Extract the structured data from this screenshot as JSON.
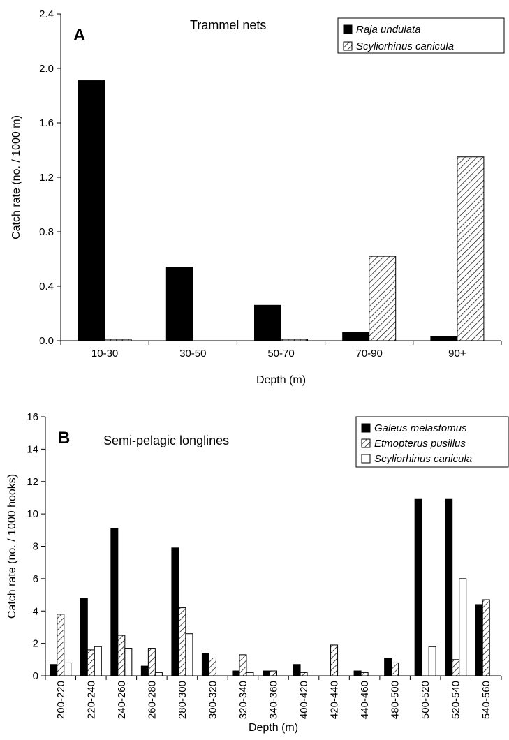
{
  "chart_data": [
    {
      "type": "bar",
      "panel": "A",
      "title": "Trammel nets",
      "xlabel": "Depth (m)",
      "ylabel": "Catch rate (no. / 1000 m)",
      "ylim": [
        0,
        2.4
      ],
      "yticks": [
        "0.0",
        "0.4",
        "0.8",
        "1.2",
        "1.6",
        "2.0",
        "2.4"
      ],
      "categories": [
        "10-30",
        "30-50",
        "50-70",
        "70-90",
        "90+"
      ],
      "legend_position": "top-right",
      "grid": false,
      "series": [
        {
          "name": "Raja undulata",
          "fill": "solid-black",
          "values": [
            1.91,
            0.54,
            0.26,
            0.06,
            0.03
          ]
        },
        {
          "name": "Scyliorhinus canicula",
          "fill": "hatched",
          "values": [
            0.01,
            0.0,
            0.01,
            0.62,
            1.35
          ]
        }
      ]
    },
    {
      "type": "bar",
      "panel": "B",
      "title": "Semi-pelagic longlines",
      "xlabel": "Depth (m)",
      "ylabel": "Catch rate (no. / 1000 hooks)",
      "ylim": [
        0,
        16
      ],
      "yticks": [
        "0",
        "2",
        "4",
        "6",
        "8",
        "10",
        "12",
        "14",
        "16"
      ],
      "categories": [
        "200-220",
        "220-240",
        "240-260",
        "260-280",
        "280-300",
        "300-320",
        "320-340",
        "340-360",
        "400-420",
        "420-440",
        "440-460",
        "480-500",
        "500-520",
        "520-540",
        "540-560"
      ],
      "legend_position": "top-right",
      "grid": false,
      "series": [
        {
          "name": "Galeus melastomus",
          "fill": "solid-black",
          "values": [
            0.7,
            4.8,
            9.1,
            0.6,
            7.9,
            1.4,
            0.3,
            0.3,
            0.7,
            0.0,
            0.3,
            1.1,
            10.9,
            10.9,
            4.4
          ]
        },
        {
          "name": "Etmopterus pusillus",
          "fill": "hatched",
          "values": [
            3.8,
            1.6,
            2.5,
            1.7,
            4.2,
            1.1,
            1.3,
            0.3,
            0.2,
            1.9,
            0.2,
            0.8,
            0.0,
            1.0,
            4.7
          ]
        },
        {
          "name": "Scyliorhinus canicula",
          "fill": "white",
          "values": [
            0.8,
            1.8,
            1.7,
            0.2,
            2.6,
            0.0,
            0.2,
            0.0,
            0.0,
            0.0,
            0.0,
            0.0,
            1.8,
            6.0,
            0.0
          ]
        }
      ]
    }
  ]
}
